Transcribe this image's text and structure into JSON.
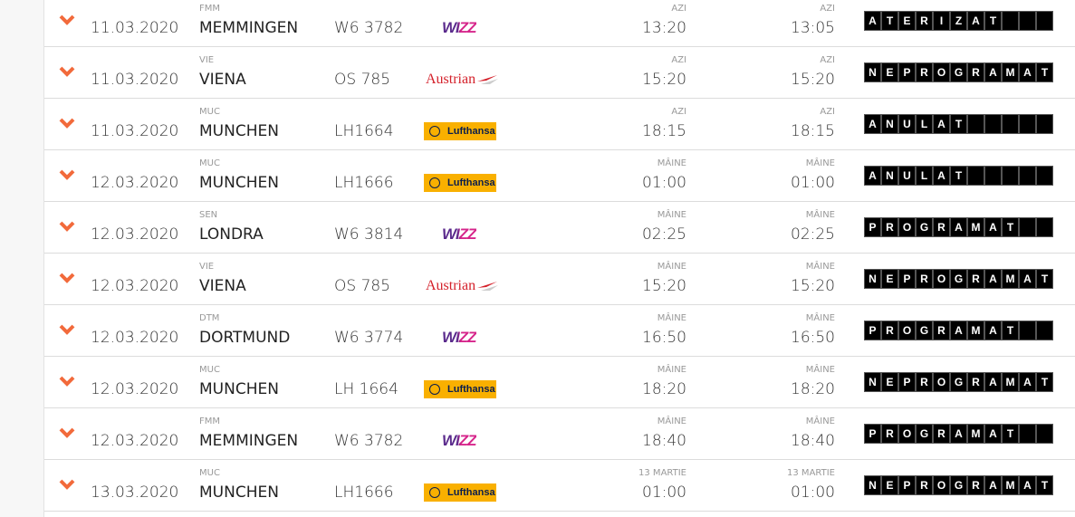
{
  "colors": {
    "accent": "#f26a3b",
    "status_bg": "#000000",
    "lufthansa": "#f9b000",
    "wizz": "#5a2a8c",
    "austrian": "#d4202a"
  },
  "flights": [
    {
      "date": "11.03.2020",
      "code": "FMM",
      "city": "MEMMINGEN",
      "flight": "W6 3782",
      "airline": "wizz",
      "airline_name": "WIZZ",
      "sched_label": "AZI",
      "sched": "13:20",
      "act_label": "AZI",
      "act": "13:05",
      "status": "ATERIZAT"
    },
    {
      "date": "11.03.2020",
      "code": "VIE",
      "city": "VIENA",
      "flight": "OS 785",
      "airline": "austrian",
      "airline_name": "Austrian",
      "sched_label": "AZI",
      "sched": "15:20",
      "act_label": "AZI",
      "act": "15:20",
      "status": "NEPROGRAMAT"
    },
    {
      "date": "11.03.2020",
      "code": "MUC",
      "city": "MUNCHEN",
      "flight": "LH1664",
      "airline": "lufthansa",
      "airline_name": "Lufthansa",
      "sched_label": "AZI",
      "sched": "18:15",
      "act_label": "AZI",
      "act": "18:15",
      "status": "ANULAT"
    },
    {
      "date": "12.03.2020",
      "code": "MUC",
      "city": "MUNCHEN",
      "flight": "LH1666",
      "airline": "lufthansa",
      "airline_name": "Lufthansa",
      "sched_label": "MÂINE",
      "sched": "01:00",
      "act_label": "MÂINE",
      "act": "01:00",
      "status": "ANULAT"
    },
    {
      "date": "12.03.2020",
      "code": "SEN",
      "city": "LONDRA",
      "flight": "W6 3814",
      "airline": "wizz",
      "airline_name": "WIZZ",
      "sched_label": "MÂINE",
      "sched": "02:25",
      "act_label": "MÂINE",
      "act": "02:25",
      "status": "PROGRAMAT"
    },
    {
      "date": "12.03.2020",
      "code": "VIE",
      "city": "VIENA",
      "flight": "OS 785",
      "airline": "austrian",
      "airline_name": "Austrian",
      "sched_label": "MÂINE",
      "sched": "15:20",
      "act_label": "MÂINE",
      "act": "15:20",
      "status": "NEPROGRAMAT"
    },
    {
      "date": "12.03.2020",
      "code": "DTM",
      "city": "DORTMUND",
      "flight": "W6 3774",
      "airline": "wizz",
      "airline_name": "WIZZ",
      "sched_label": "MÂINE",
      "sched": "16:50",
      "act_label": "MÂINE",
      "act": "16:50",
      "status": "PROGRAMAT"
    },
    {
      "date": "12.03.2020",
      "code": "MUC",
      "city": "MUNCHEN",
      "flight": "LH 1664",
      "airline": "lufthansa",
      "airline_name": "Lufthansa",
      "sched_label": "MÂINE",
      "sched": "18:20",
      "act_label": "MÂINE",
      "act": "18:20",
      "status": "NEPROGRAMAT"
    },
    {
      "date": "12.03.2020",
      "code": "FMM",
      "city": "MEMMINGEN",
      "flight": "W6 3782",
      "airline": "wizz",
      "airline_name": "WIZZ",
      "sched_label": "MÂINE",
      "sched": "18:40",
      "act_label": "MÂINE",
      "act": "18:40",
      "status": "PROGRAMAT"
    },
    {
      "date": "13.03.2020",
      "code": "MUC",
      "city": "MUNCHEN",
      "flight": "LH1666",
      "airline": "lufthansa",
      "airline_name": "Lufthansa",
      "sched_label": "13 MARTIE",
      "sched": "01:00",
      "act_label": "13 MARTIE",
      "act": "01:00",
      "status": "NEPROGRAMAT"
    }
  ]
}
